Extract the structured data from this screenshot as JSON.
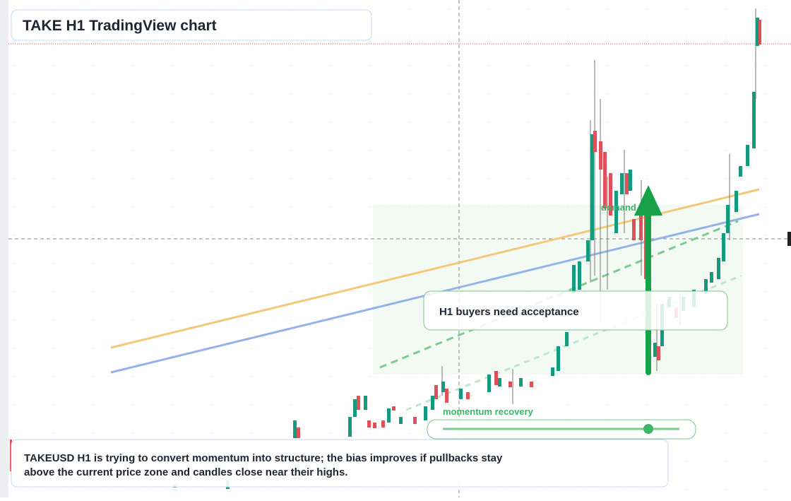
{
  "header": {
    "title": "TAKE H1 TradingView chart"
  },
  "annotations": {
    "zone_label": "demand side",
    "callout": "H1 buyers need acceptance",
    "momentum_label": "momentum recovery"
  },
  "summary": {
    "lines": [
      "TAKEUSD H1 is trying to convert momentum into structure; the bias improves if pullbacks stay",
      "above the current price zone and candles close near their highs."
    ]
  }
}
